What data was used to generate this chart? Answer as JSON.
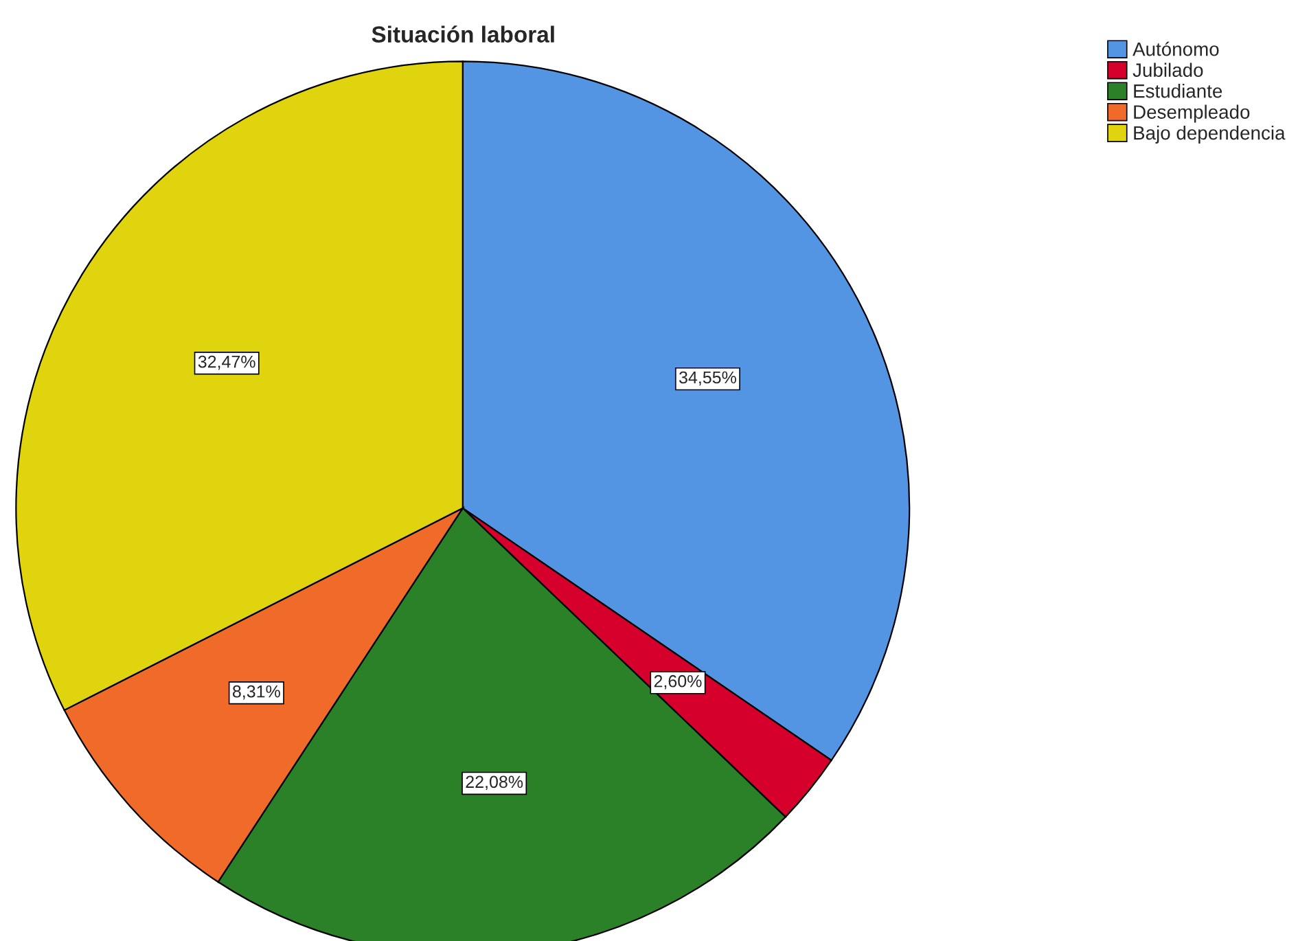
{
  "chart_data": {
    "type": "pie",
    "title": "Situación laboral",
    "categories": [
      "Autónomo",
      "Jubilado",
      "Estudiante",
      "Desempleado",
      "Bajo dependencia"
    ],
    "values": [
      34.55,
      2.6,
      22.08,
      8.31,
      32.47
    ],
    "colors": [
      "#5394e3",
      "#d5002c",
      "#2a8128",
      "#f06a2a",
      "#e0d40f"
    ],
    "value_labels": [
      "34,55%",
      "2,60%",
      "22,08%",
      "8,31%",
      "32,47%"
    ],
    "legend": "top right"
  }
}
